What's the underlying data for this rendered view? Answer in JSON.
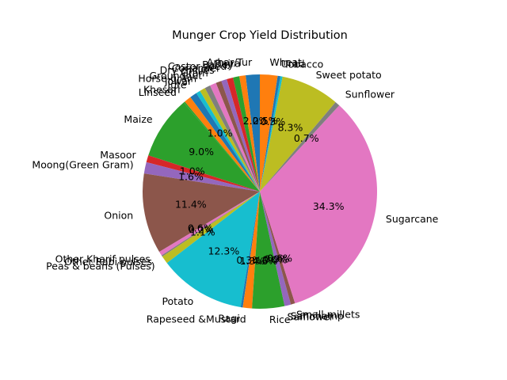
{
  "chart_data": {
    "type": "pie",
    "title": "Munger Crop Yield Distribution",
    "start_angle_deg": 90,
    "direction": "counterclockwise",
    "slices": [
      {
        "label": "Arhar/Tur",
        "value": 2.0,
        "pct_label": "2.0%",
        "color": "#1f77b4"
      },
      {
        "label": "Bajra",
        "value": 0.9,
        "pct_label": "",
        "color": "#ff7f0e"
      },
      {
        "label": "Barley",
        "value": 0.9,
        "pct_label": "",
        "color": "#2ca02c"
      },
      {
        "label": "Castor seed",
        "value": 0.9,
        "pct_label": "",
        "color": "#d62728"
      },
      {
        "label": "Coriander",
        "value": 0.8,
        "pct_label": "",
        "color": "#9467bd"
      },
      {
        "label": "Dry chillies",
        "value": 0.8,
        "pct_label": "",
        "color": "#8c564b"
      },
      {
        "label": "Gram",
        "value": 0.9,
        "pct_label": "",
        "color": "#e377c2"
      },
      {
        "label": "Groundnut",
        "value": 0.8,
        "pct_label": "",
        "color": "#7f7f7f"
      },
      {
        "label": "Horse-gram",
        "value": 0.8,
        "pct_label": "",
        "color": "#bcbd22"
      },
      {
        "label": "Jowar",
        "value": 0.6,
        "pct_label": "",
        "color": "#17becf"
      },
      {
        "label": "Jute",
        "value": 1.0,
        "pct_label": "1.0%",
        "color": "#1f77b4"
      },
      {
        "label": "Khesari",
        "value": 1.0,
        "pct_label": "",
        "color": "#ff7f0e"
      },
      {
        "label": "Linseed",
        "value": 0.2,
        "pct_label": "",
        "color": "#2ca02c"
      },
      {
        "label": "Maize",
        "value": 9.0,
        "pct_label": "9.0%",
        "color": "#2ca02c"
      },
      {
        "label": "Masoor",
        "value": 1.0,
        "pct_label": "1.0%",
        "color": "#d62728"
      },
      {
        "label": "Moong(Green Gram)",
        "value": 1.6,
        "pct_label": "1.6%",
        "color": "#9467bd"
      },
      {
        "label": "Onion",
        "value": 11.4,
        "pct_label": "11.4%",
        "color": "#8c564b"
      },
      {
        "label": "Other Kharif pulses",
        "value": 0.6,
        "pct_label": "0.6%",
        "color": "#e377c2"
      },
      {
        "label": "Other Rabi pulses",
        "value": 0.2,
        "pct_label": "0.2%",
        "color": "#7f7f7f"
      },
      {
        "label": "Peas & beans (Pulses)",
        "value": 1.1,
        "pct_label": "1.1%",
        "color": "#bcbd22"
      },
      {
        "label": "Potato",
        "value": 12.3,
        "pct_label": "12.3%",
        "color": "#17becf"
      },
      {
        "label": "Ragi",
        "value": 0.3,
        "pct_label": "0.3%",
        "color": "#1f77b4"
      },
      {
        "label": "Rapeseed &Mustard",
        "value": 1.3,
        "pct_label": "1.3%",
        "color": "#ff7f0e"
      },
      {
        "label": "Rice",
        "value": 4.6,
        "pct_label": "4.6%",
        "color": "#2ca02c"
      },
      {
        "label": "Safflower",
        "value": 0.0,
        "pct_label": "0.0%",
        "color": "#d62728"
      },
      {
        "label": "Sannhamp",
        "value": 0.9,
        "pct_label": "0.9%",
        "color": "#9467bd"
      },
      {
        "label": "Small millets",
        "value": 0.6,
        "pct_label": "0.6%",
        "color": "#8c564b"
      },
      {
        "label": "Sugarcane",
        "value": 34.3,
        "pct_label": "34.3%",
        "color": "#e377c2"
      },
      {
        "label": "Sunflower",
        "value": 0.7,
        "pct_label": "0.7%",
        "color": "#7f7f7f"
      },
      {
        "label": "Sweet potato",
        "value": 8.3,
        "pct_label": "8.3%",
        "color": "#bcbd22"
      },
      {
        "label": "Tobacco",
        "value": 0.3,
        "pct_label": "0.3%",
        "color": "#17becf"
      },
      {
        "label": "Urad",
        "value": 0.4,
        "pct_label": "",
        "color": "#1f77b4"
      },
      {
        "label": "Wheat",
        "value": 2.5,
        "pct_label": "2.5%",
        "color": "#ff7f0e"
      }
    ]
  }
}
